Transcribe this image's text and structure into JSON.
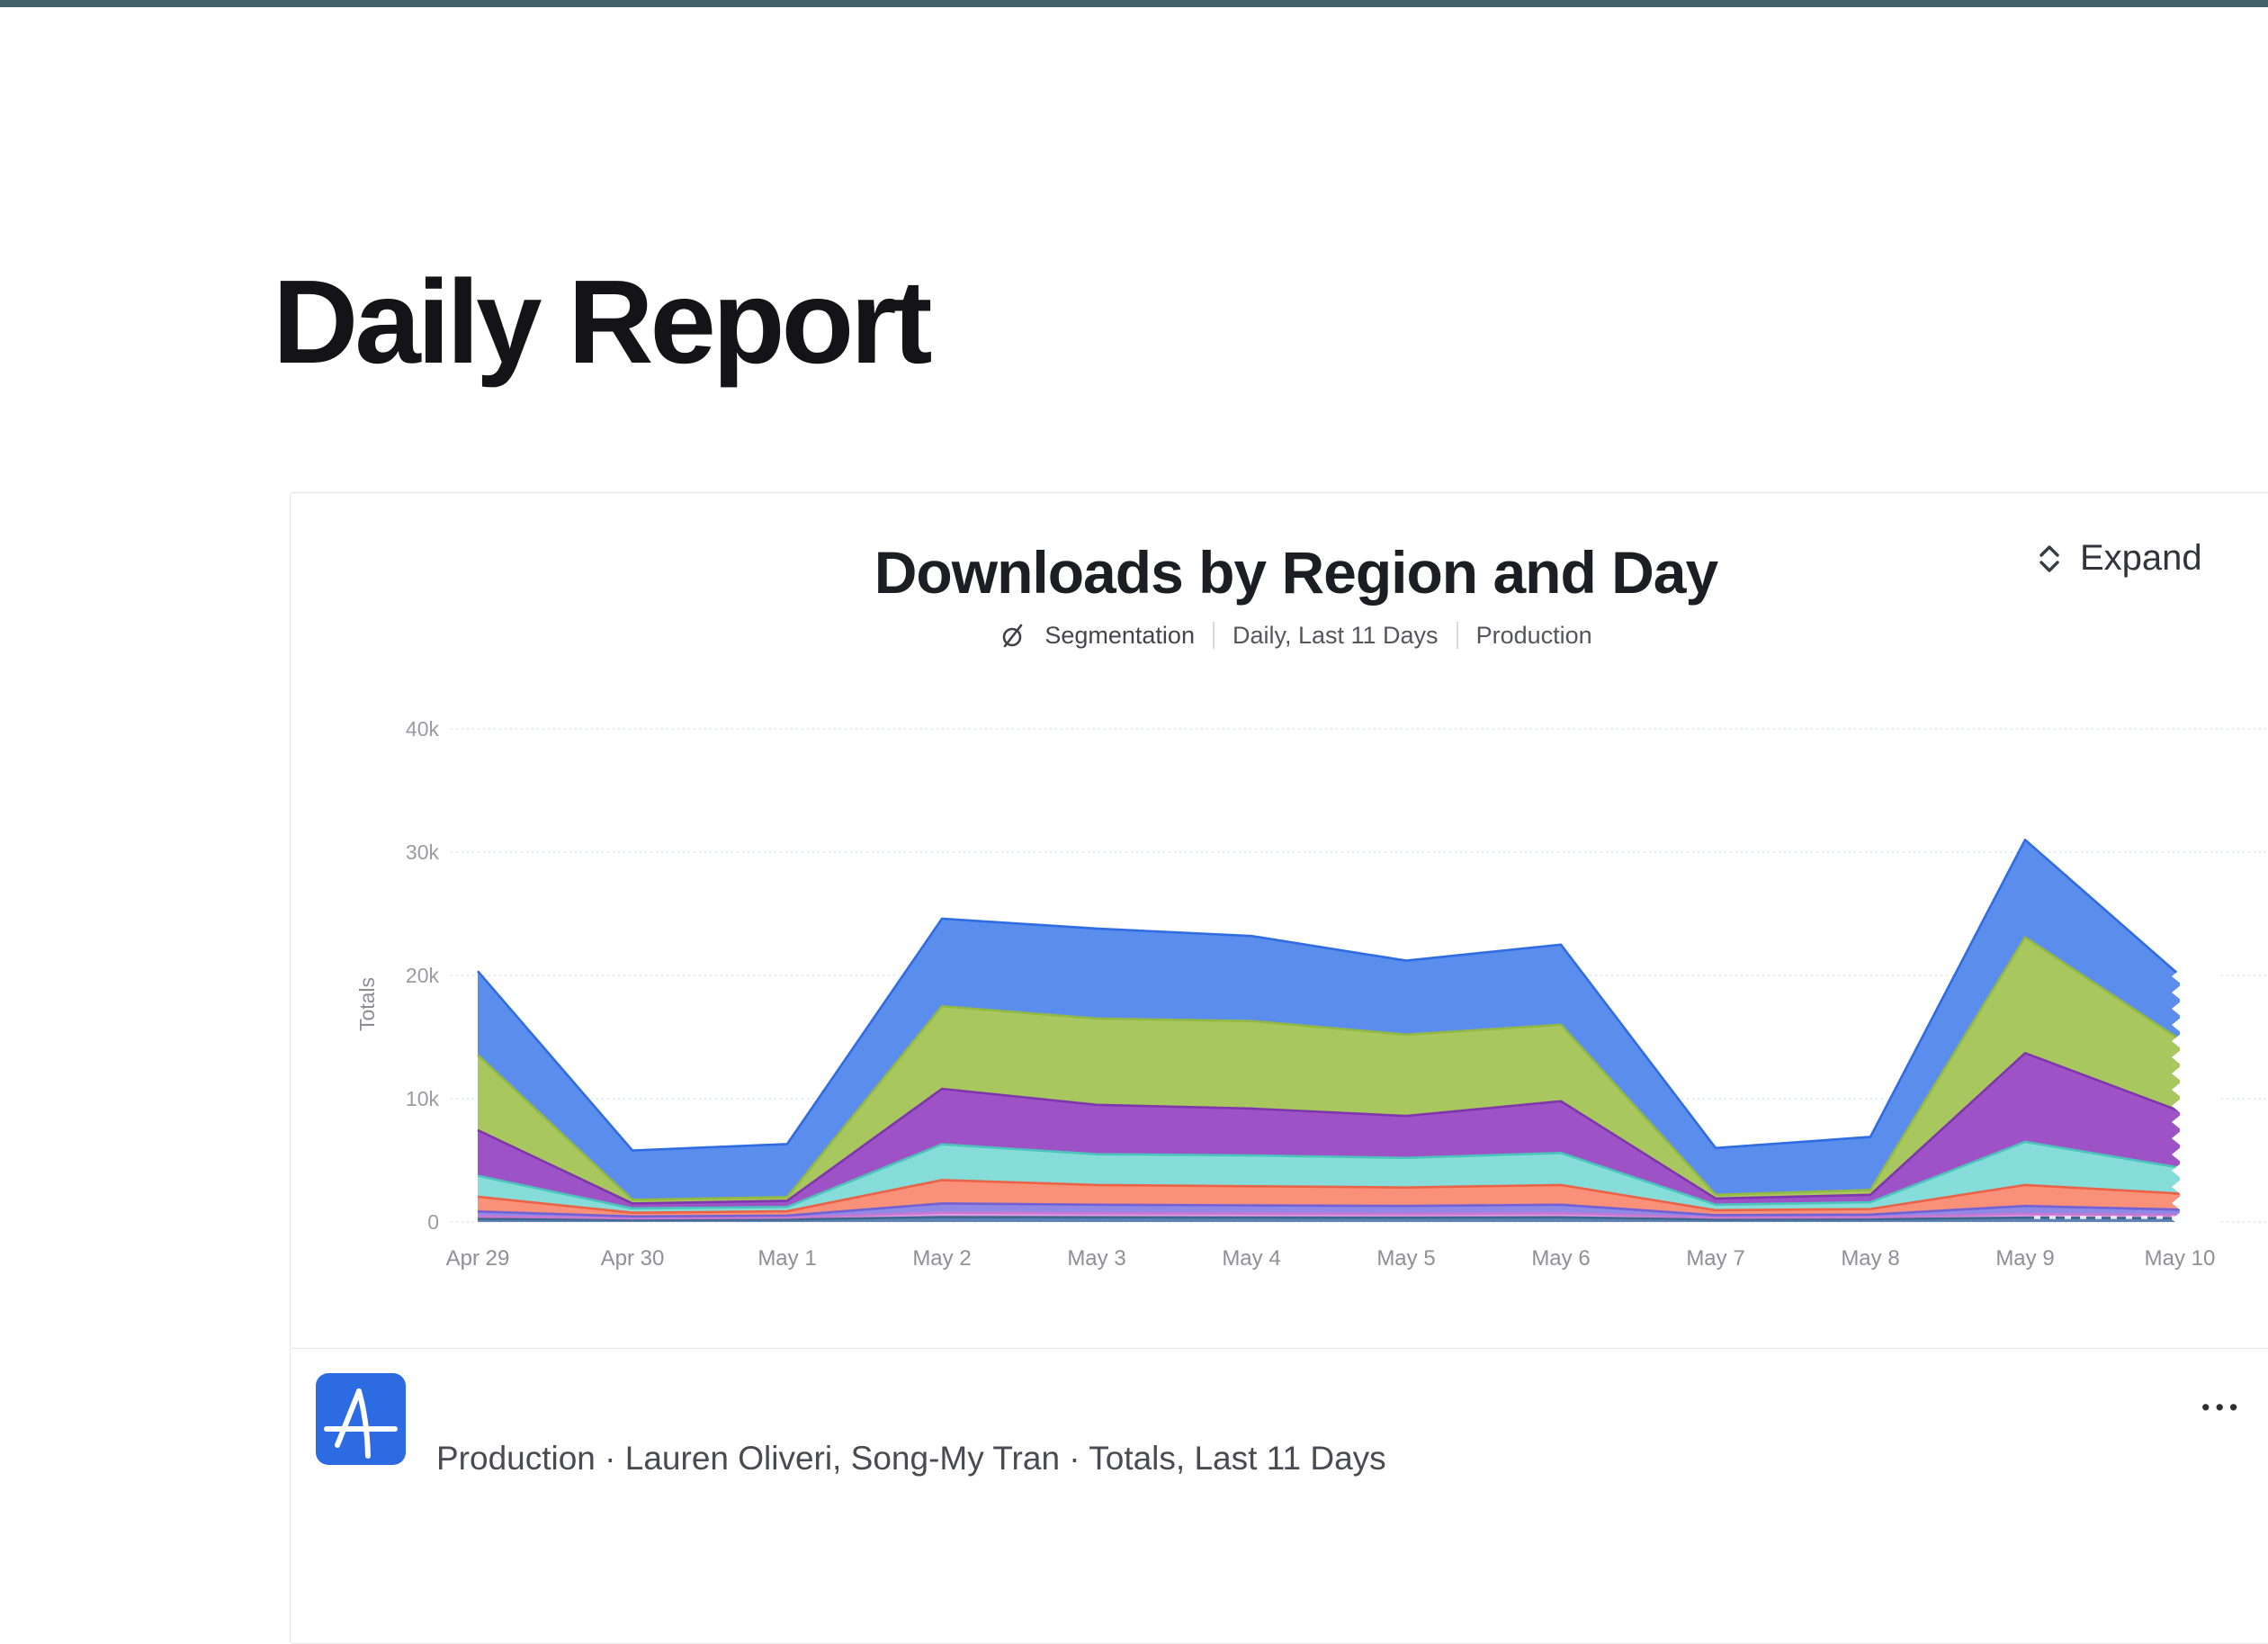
{
  "page": {
    "title": "Daily Report",
    "topbar_color": "#456168"
  },
  "card": {
    "chart": {
      "subtitle": {
        "chart_type": "Segmentation",
        "range": "Daily, Last 11 Days",
        "environment": "Production"
      },
      "expand_label": "Expand"
    },
    "footer": {
      "icon": "amplitude-logo",
      "icon_color": "#2c6be2",
      "text": "Production · Lauren Oliveri, Song-My Tran · Totals, Last 11 Days",
      "more_label": "•••"
    }
  },
  "chart_data": {
    "type": "area",
    "stacked": true,
    "title": "Downloads by Region and Day",
    "xlabel": "",
    "ylabel": "Totals",
    "ylim": [
      0,
      40000
    ],
    "yticks": [
      0,
      10000,
      20000,
      30000,
      40000
    ],
    "ytick_labels": [
      "0",
      "10k",
      "20k",
      "30k",
      "40k"
    ],
    "grid": true,
    "legend": "none",
    "categories": [
      "Apr 29",
      "Apr 30",
      "May 1",
      "May 2",
      "May 3",
      "May 4",
      "May 5",
      "May 6",
      "May 7",
      "May 8",
      "May 9",
      "May 10"
    ],
    "series": [
      {
        "name": "steel-blue",
        "fill": "#5e81b6",
        "stroke": "#3f668e",
        "values": [
          250,
          180,
          200,
          400,
          380,
          360,
          350,
          380,
          200,
          220,
          350,
          300
        ]
      },
      {
        "name": "orchid",
        "fill": "#de9ae2",
        "stroke": "#ca77d1",
        "values": [
          200,
          120,
          150,
          350,
          320,
          320,
          300,
          320,
          150,
          160,
          300,
          250
        ]
      },
      {
        "name": "periwinkle",
        "fill": "#9188e6",
        "stroke": "#7061d4",
        "values": [
          400,
          150,
          170,
          750,
          700,
          670,
          650,
          700,
          200,
          220,
          650,
          450
        ]
      },
      {
        "name": "coral",
        "fill": "#f9907a",
        "stroke": "#ec6246",
        "values": [
          1200,
          300,
          350,
          1900,
          1600,
          1550,
          1500,
          1600,
          400,
          450,
          1700,
          1300
        ]
      },
      {
        "name": "turquoise",
        "fill": "#85dcd8",
        "stroke": "#4cc4bc",
        "values": [
          1700,
          350,
          350,
          2900,
          2500,
          2500,
          2400,
          2600,
          450,
          550,
          3500,
          2100
        ]
      },
      {
        "name": "purple",
        "fill": "#9d53c6",
        "stroke": "#7f36ad",
        "values": [
          3700,
          400,
          500,
          4500,
          4000,
          3800,
          3400,
          4200,
          500,
          600,
          7200,
          4600
        ]
      },
      {
        "name": "green",
        "fill": "#a8c75f",
        "stroke": "#93b944",
        "values": [
          6100,
          300,
          300,
          6700,
          7000,
          7100,
          6600,
          6200,
          300,
          400,
          9400,
          5800
        ]
      },
      {
        "name": "blue",
        "fill": "#5b8ded",
        "stroke": "#2f6ce2",
        "values": [
          6800,
          4000,
          4300,
          7100,
          7300,
          6900,
          6000,
          6500,
          3800,
          4300,
          7900,
          5200
        ]
      }
    ]
  }
}
